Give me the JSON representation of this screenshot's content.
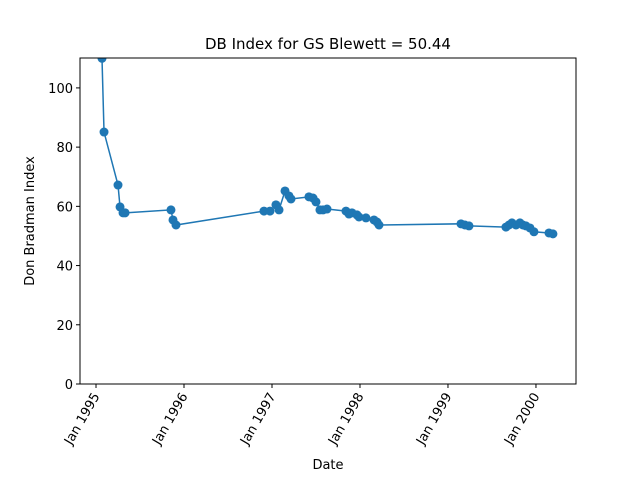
{
  "chart_data": {
    "type": "line",
    "title": "DB Index for GS Blewett = 50.44",
    "xlabel": "Date",
    "ylabel": "Don Bradman Index",
    "color": "#1f77b4",
    "x": [
      1995.068,
      1995.091,
      1995.25,
      1995.273,
      1995.307,
      1995.33,
      1995.852,
      1995.875,
      1995.909,
      1996.909,
      1996.977,
      1997.045,
      1997.08,
      1997.148,
      1997.193,
      1997.216,
      1997.42,
      1997.466,
      1997.5,
      1997.545,
      1997.58,
      1997.625,
      1997.841,
      1997.875,
      1997.909,
      1997.966,
      1997.989,
      1998.068,
      1998.159,
      1998.193,
      1998.216,
      1999.148,
      1999.193,
      1999.239,
      1999.659,
      1999.693,
      1999.727,
      1999.773,
      1999.818,
      1999.852,
      1999.886,
      1999.932,
      1999.977,
      2000.148,
      2000.193
    ],
    "values": [
      110,
      85.1,
      67.2,
      59.8,
      57.8,
      57.8,
      58.8,
      55.4,
      53.7,
      58.4,
      58.4,
      60.5,
      58.8,
      65.2,
      63.5,
      62.5,
      63.2,
      62.8,
      61.5,
      58.8,
      58.8,
      59.1,
      58.4,
      57.4,
      57.8,
      57.1,
      56.4,
      56.1,
      55.4,
      54.7,
      53.7,
      54.1,
      53.7,
      53.4,
      53.0,
      53.7,
      54.4,
      53.7,
      54.4,
      53.7,
      53.4,
      52.7,
      51.4,
      51.0,
      50.7
    ],
    "xlim": [
      1994.818,
      2000.455
    ],
    "ylim": [
      0,
      110.1
    ],
    "xticks": [
      {
        "value": 1995,
        "label": "Jan 1995"
      },
      {
        "value": 1996,
        "label": "Jan 1996"
      },
      {
        "value": 1997,
        "label": "Jan 1997"
      },
      {
        "value": 1998,
        "label": "Jan 1998"
      },
      {
        "value": 1999,
        "label": "Jan 1999"
      },
      {
        "value": 2000,
        "label": "Jan 2000"
      }
    ],
    "yticks": [
      0,
      20,
      40,
      60,
      80,
      100
    ]
  }
}
